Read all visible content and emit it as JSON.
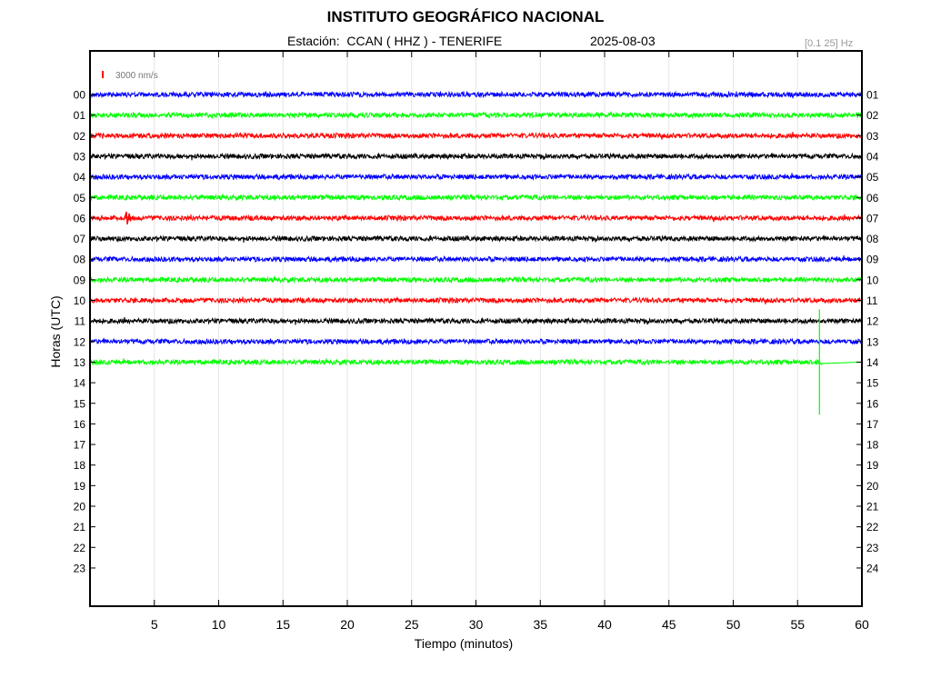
{
  "header": {
    "title": "INSTITUTO GEOGRÁFICO NACIONAL",
    "station": "Estación:  CCAN ( HHZ ) - TENERIFE",
    "date": "2025-08-03",
    "filter": "[0.1 25] Hz"
  },
  "chart_data": {
    "type": "line",
    "xlabel": "Tiempo (minutos)",
    "ylabel": "Horas (UTC)",
    "xlim": [
      0,
      60
    ],
    "x_ticks": [
      5,
      10,
      15,
      20,
      25,
      30,
      35,
      40,
      45,
      50,
      55,
      60
    ],
    "left_hour_labels": [
      "00",
      "01",
      "02",
      "03",
      "04",
      "05",
      "06",
      "07",
      "08",
      "09",
      "10",
      "11",
      "12",
      "13",
      "14",
      "15",
      "16",
      "17",
      "18",
      "19",
      "20",
      "21",
      "22",
      "23"
    ],
    "right_hour_labels": [
      "01",
      "02",
      "03",
      "04",
      "05",
      "06",
      "07",
      "08",
      "09",
      "10",
      "11",
      "12",
      "13",
      "14",
      "15",
      "16",
      "17",
      "18",
      "19",
      "20",
      "21",
      "22",
      "23",
      "24"
    ],
    "scale_bar": {
      "label": "3000 nm/s",
      "color": "#ff0000"
    },
    "trace_colors": [
      "#0000ff",
      "#00ff00",
      "#ff0000",
      "#000000"
    ],
    "grid": "vertical",
    "traces": [
      {
        "hour": "00",
        "color": "#0000ff",
        "x_end": 60
      },
      {
        "hour": "01",
        "color": "#00ff00",
        "x_end": 60
      },
      {
        "hour": "02",
        "color": "#ff0000",
        "x_end": 60
      },
      {
        "hour": "03",
        "color": "#000000",
        "x_end": 60
      },
      {
        "hour": "04",
        "color": "#0000ff",
        "x_end": 60
      },
      {
        "hour": "05",
        "color": "#00ff00",
        "x_end": 60
      },
      {
        "hour": "06",
        "color": "#ff0000",
        "x_end": 60
      },
      {
        "hour": "07",
        "color": "#000000",
        "x_end": 60
      },
      {
        "hour": "08",
        "color": "#0000ff",
        "x_end": 60
      },
      {
        "hour": "09",
        "color": "#00ff00",
        "x_end": 60
      },
      {
        "hour": "10",
        "color": "#ff0000",
        "x_end": 60
      },
      {
        "hour": "11",
        "color": "#000000",
        "x_end": 60
      },
      {
        "hour": "12",
        "color": "#0000ff",
        "x_end": 60
      },
      {
        "hour": "13",
        "color": "#00ff00",
        "x_end": 56.7,
        "flat_after": true
      }
    ],
    "events": [
      {
        "hour": "06",
        "minute": 2.9,
        "amplitude": "small"
      },
      {
        "hour": "13",
        "minute": 56.7,
        "amplitude": "large"
      }
    ]
  }
}
